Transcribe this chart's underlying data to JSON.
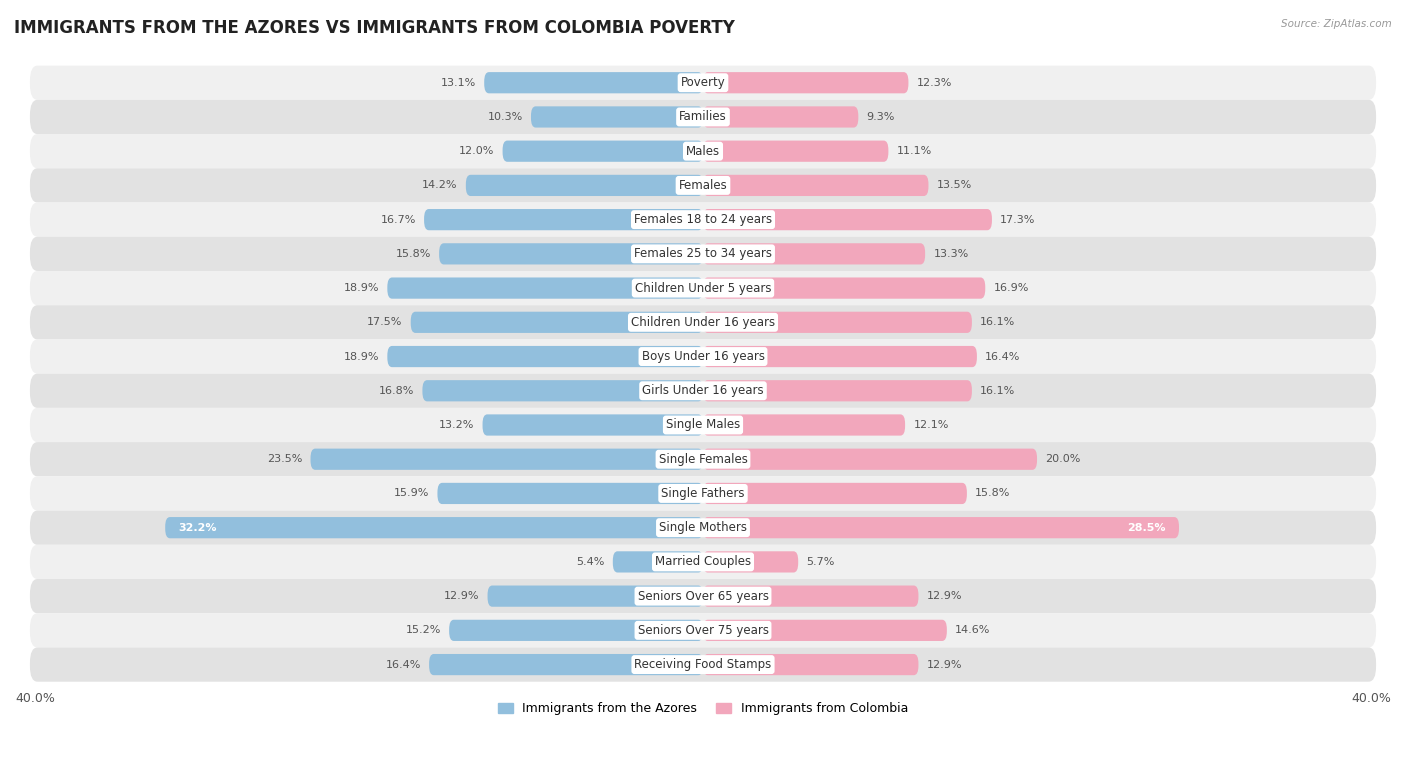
{
  "title": "IMMIGRANTS FROM THE AZORES VS IMMIGRANTS FROM COLOMBIA POVERTY",
  "source": "Source: ZipAtlas.com",
  "categories": [
    "Poverty",
    "Families",
    "Males",
    "Females",
    "Females 18 to 24 years",
    "Females 25 to 34 years",
    "Children Under 5 years",
    "Children Under 16 years",
    "Boys Under 16 years",
    "Girls Under 16 years",
    "Single Males",
    "Single Females",
    "Single Fathers",
    "Single Mothers",
    "Married Couples",
    "Seniors Over 65 years",
    "Seniors Over 75 years",
    "Receiving Food Stamps"
  ],
  "azores_values": [
    13.1,
    10.3,
    12.0,
    14.2,
    16.7,
    15.8,
    18.9,
    17.5,
    18.9,
    16.8,
    13.2,
    23.5,
    15.9,
    32.2,
    5.4,
    12.9,
    15.2,
    16.4
  ],
  "colombia_values": [
    12.3,
    9.3,
    11.1,
    13.5,
    17.3,
    13.3,
    16.9,
    16.1,
    16.4,
    16.1,
    12.1,
    20.0,
    15.8,
    28.5,
    5.7,
    12.9,
    14.6,
    12.9
  ],
  "azores_color": "#92bfdd",
  "colombia_color": "#f2a7bc",
  "azores_label": "Immigrants from the Azores",
  "colombia_label": "Immigrants from Colombia",
  "xlim": 40.0,
  "row_bg_light": "#f0f0f0",
  "row_bg_dark": "#e2e2e2",
  "background_color": "#ffffff",
  "title_fontsize": 12,
  "label_fontsize": 8.5,
  "value_fontsize": 8,
  "bar_height": 0.62
}
